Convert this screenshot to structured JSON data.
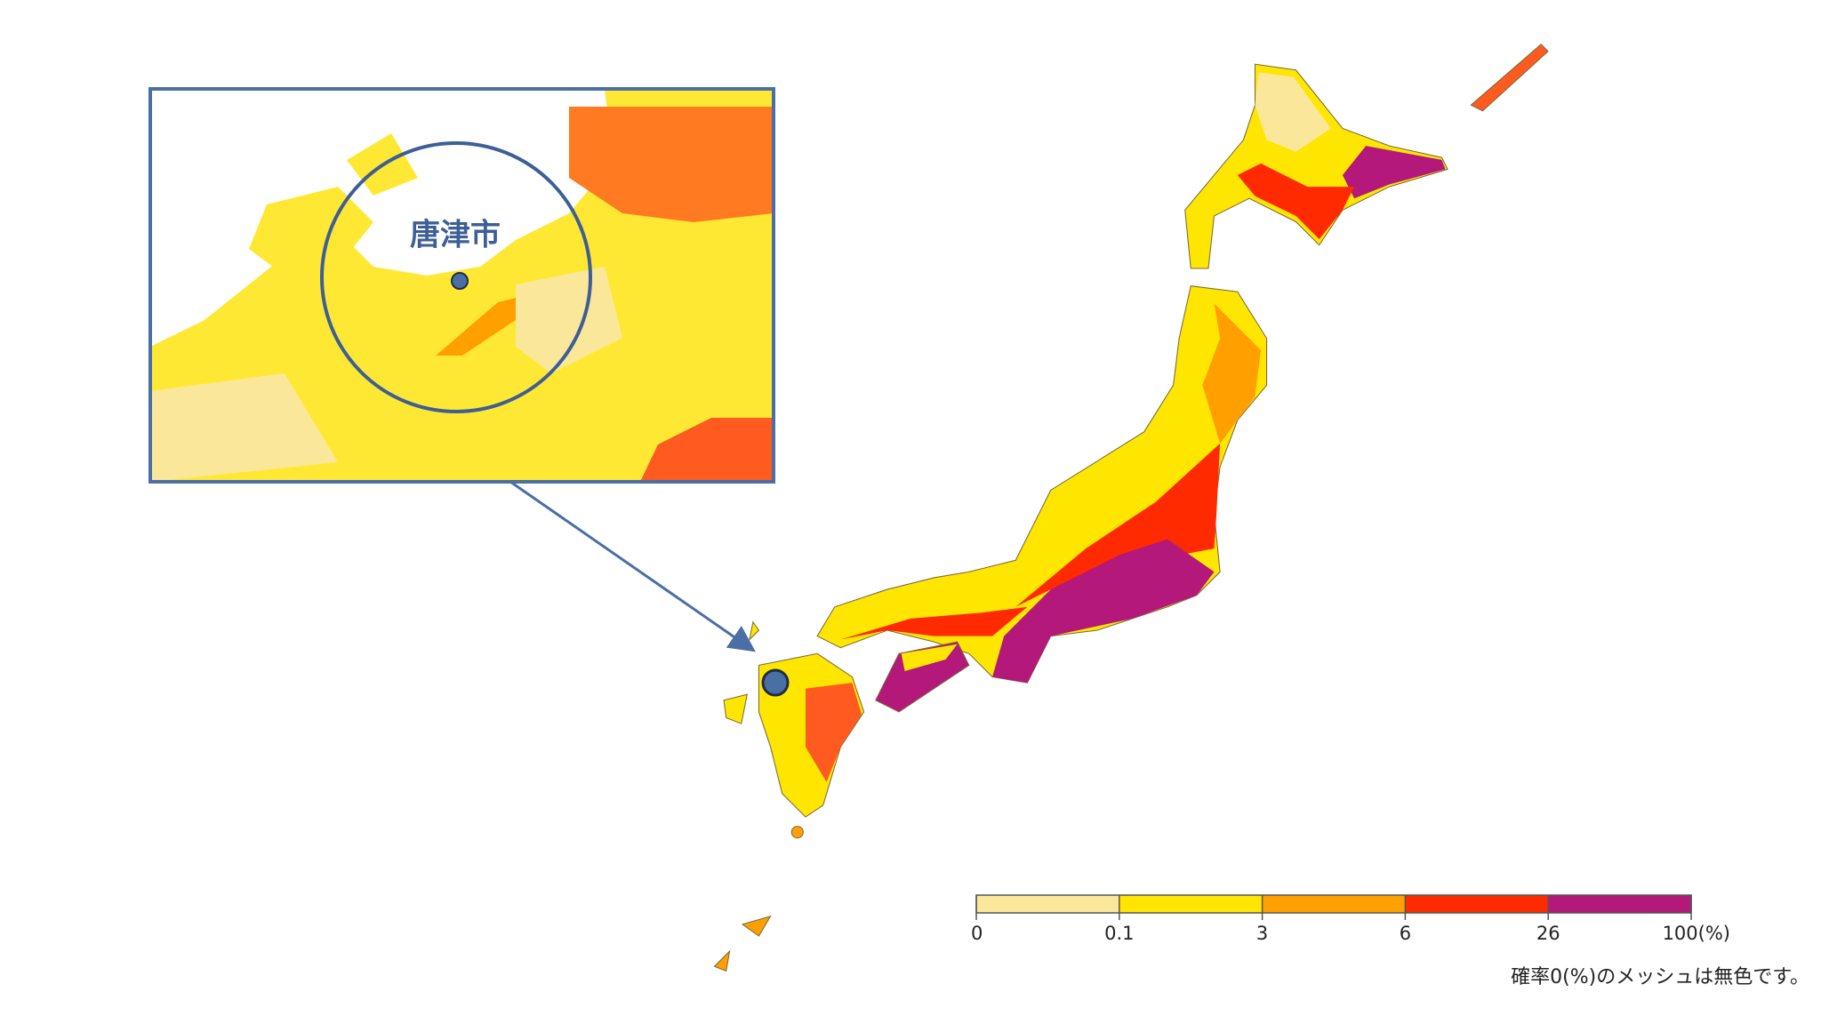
{
  "inset": {
    "label": "唐津市"
  },
  "legend": {
    "ticks": [
      0,
      0.1,
      3,
      6,
      26,
      {
        "value": 100,
        "label": "100(%)"
      }
    ],
    "colors": [
      "#fbe79a",
      "#ffe600",
      "#ffa000",
      "#ff2a00",
      "#b3187a"
    ]
  },
  "note": "確率0(%)のメッシュは無色です。"
}
